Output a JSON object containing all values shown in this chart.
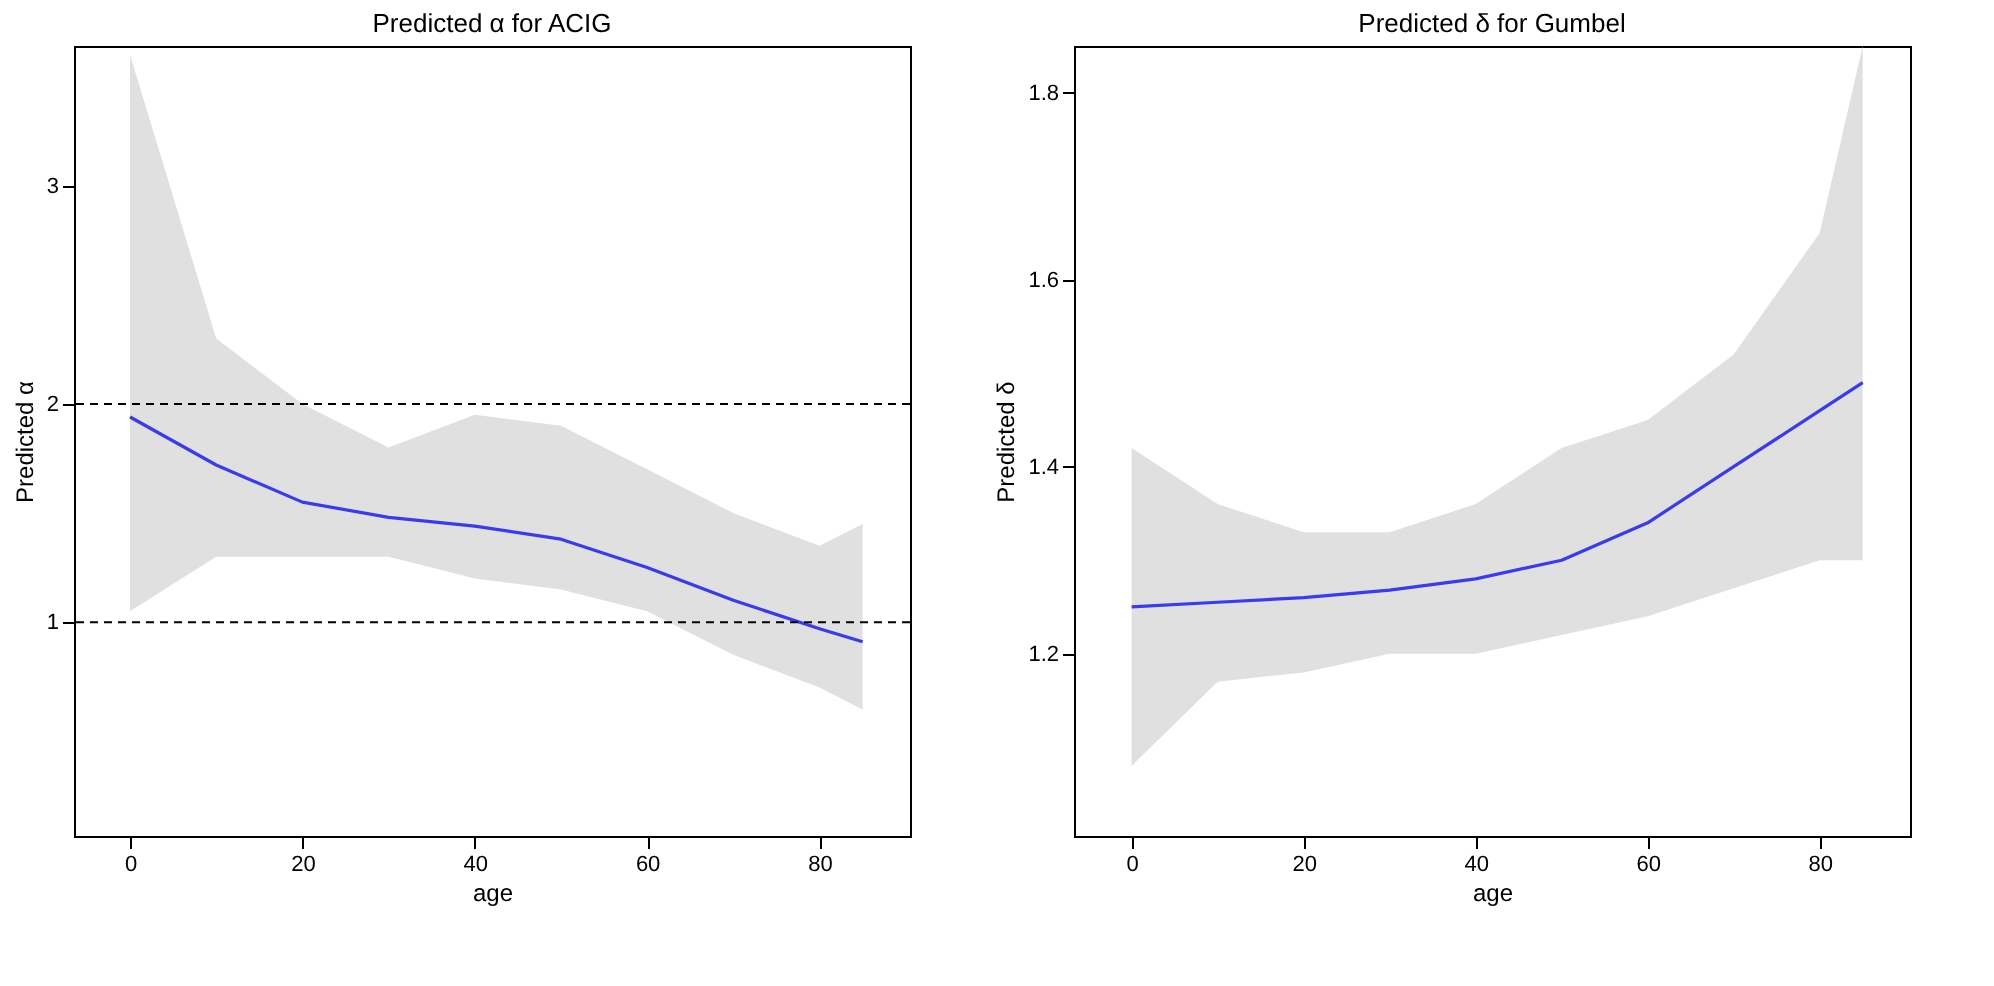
{
  "chart_data": [
    {
      "type": "line",
      "title": "Predicted α for ACIG",
      "xlabel": "age",
      "ylabel": "Predicted α",
      "xlim": [
        -6.5,
        90.5
      ],
      "ylim": [
        0.02,
        3.64
      ],
      "xticks": [
        0,
        20,
        40,
        60,
        80
      ],
      "yticks": [
        1,
        2,
        3
      ],
      "grid": false,
      "x": [
        0,
        10,
        20,
        30,
        40,
        50,
        60,
        70,
        80,
        85
      ],
      "series": [
        {
          "color": "#3a3af0",
          "values": [
            1.94,
            1.72,
            1.55,
            1.48,
            1.44,
            1.38,
            1.25,
            1.1,
            0.97,
            0.91
          ],
          "lower": [
            1.05,
            1.3,
            1.3,
            1.3,
            1.2,
            1.15,
            1.05,
            0.85,
            0.7,
            0.6
          ],
          "upper": [
            3.6,
            2.3,
            2.0,
            1.8,
            1.95,
            1.9,
            1.7,
            1.5,
            1.35,
            1.45
          ]
        }
      ],
      "ref_lines": [
        {
          "axis": "y",
          "value": 2,
          "line_style": "dashed",
          "color": "#000000"
        },
        {
          "axis": "y",
          "value": 1,
          "line_style": "dashed",
          "color": "#000000"
        }
      ]
    },
    {
      "type": "line",
      "title": "Predicted δ for Gumbel",
      "xlabel": "age",
      "ylabel": "Predicted δ",
      "xlim": [
        -6.7,
        90.5
      ],
      "ylim": [
        1.005,
        1.85
      ],
      "xticks": [
        0,
        20,
        40,
        60,
        80
      ],
      "yticks": [
        1.2,
        1.4,
        1.6,
        1.8
      ],
      "grid": false,
      "x": [
        0,
        10,
        20,
        30,
        40,
        50,
        60,
        70,
        80,
        85
      ],
      "series": [
        {
          "color": "#3a3af0",
          "values": [
            1.25,
            1.255,
            1.26,
            1.268,
            1.28,
            1.3,
            1.34,
            1.4,
            1.46,
            1.49
          ],
          "lower": [
            1.08,
            1.17,
            1.18,
            1.2,
            1.2,
            1.22,
            1.24,
            1.27,
            1.3,
            1.3
          ],
          "upper": [
            1.42,
            1.36,
            1.33,
            1.33,
            1.36,
            1.42,
            1.45,
            1.52,
            1.65,
            1.85
          ]
        }
      ]
    }
  ]
}
